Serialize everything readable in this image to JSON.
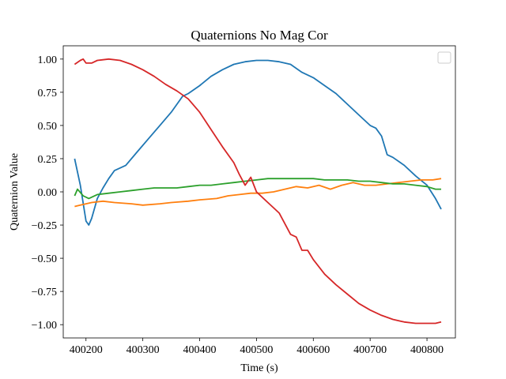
{
  "chart_data": {
    "type": "line",
    "title": "Quaternions No Mag Cor",
    "xlabel": "Time (s)",
    "ylabel": "Quaternion Value",
    "xlim": [
      400160,
      400850
    ],
    "ylim": [
      -1.1,
      1.1
    ],
    "x_ticks": [
      400200,
      400300,
      400400,
      400500,
      400600,
      400700,
      400800
    ],
    "y_ticks": [
      -1.0,
      -0.75,
      -0.5,
      -0.25,
      0.0,
      0.25,
      0.5,
      0.75,
      1.0
    ],
    "x_tick_labels": [
      "400200",
      "400300",
      "400400",
      "400500",
      "400600",
      "400700",
      "400800"
    ],
    "y_tick_labels": [
      "−1.00",
      "−0.75",
      "−0.50",
      "−0.25",
      "0.00",
      "0.25",
      "0.50",
      "0.75",
      "1.00"
    ],
    "grid": false,
    "legend": {
      "placement": "top-right",
      "entries": []
    },
    "series": [
      {
        "color": "#1f77b4",
        "x": [
          400180,
          400190,
          400200,
          400205,
          400210,
          400220,
          400230,
          400240,
          400250,
          400270,
          400290,
          400310,
          400330,
          400350,
          400360,
          400370,
          400380,
          400400,
          400420,
          400440,
          400460,
          400480,
          400500,
          400520,
          400540,
          400560,
          400580,
          400600,
          400620,
          400640,
          400660,
          400680,
          400700,
          400710,
          400720,
          400730,
          400740,
          400760,
          400780,
          400800,
          400815,
          400825
        ],
        "y": [
          0.25,
          0.05,
          -0.22,
          -0.25,
          -0.2,
          -0.05,
          0.03,
          0.1,
          0.16,
          0.2,
          0.3,
          0.4,
          0.5,
          0.6,
          0.66,
          0.72,
          0.74,
          0.8,
          0.87,
          0.92,
          0.96,
          0.98,
          0.99,
          0.99,
          0.98,
          0.96,
          0.9,
          0.86,
          0.8,
          0.74,
          0.66,
          0.58,
          0.5,
          0.48,
          0.42,
          0.28,
          0.26,
          0.2,
          0.12,
          0.05,
          -0.05,
          -0.13
        ]
      },
      {
        "color": "#ff7f0e",
        "x": [
          400180,
          400190,
          400200,
          400210,
          400230,
          400250,
          400280,
          400300,
          400330,
          400350,
          400380,
          400400,
          400430,
          400450,
          400470,
          400490,
          400510,
          400530,
          400550,
          400570,
          400590,
          400610,
          400630,
          400650,
          400670,
          400690,
          400710,
          400730,
          400750,
          400770,
          400790,
          400810,
          400825
        ],
        "y": [
          -0.11,
          -0.1,
          -0.09,
          -0.08,
          -0.07,
          -0.08,
          -0.09,
          -0.1,
          -0.09,
          -0.08,
          -0.07,
          -0.06,
          -0.05,
          -0.03,
          -0.02,
          -0.01,
          -0.01,
          0.0,
          0.02,
          0.04,
          0.03,
          0.05,
          0.02,
          0.05,
          0.07,
          0.05,
          0.05,
          0.06,
          0.07,
          0.08,
          0.09,
          0.09,
          0.1
        ]
      },
      {
        "color": "#2ca02c",
        "x": [
          400180,
          400185,
          400195,
          400205,
          400220,
          400240,
          400260,
          400280,
          400300,
          400320,
          400340,
          400360,
          400380,
          400400,
          400420,
          400440,
          400460,
          400480,
          400500,
          400520,
          400540,
          400560,
          400580,
          400600,
          400620,
          400640,
          400660,
          400680,
          400700,
          400720,
          400740,
          400760,
          400780,
          400800,
          400815,
          400825
        ],
        "y": [
          -0.03,
          0.02,
          -0.03,
          -0.05,
          -0.02,
          -0.01,
          0.0,
          0.01,
          0.02,
          0.03,
          0.03,
          0.03,
          0.04,
          0.05,
          0.05,
          0.06,
          0.07,
          0.08,
          0.09,
          0.1,
          0.1,
          0.1,
          0.1,
          0.1,
          0.09,
          0.09,
          0.09,
          0.08,
          0.08,
          0.07,
          0.06,
          0.06,
          0.05,
          0.04,
          0.02,
          0.02
        ]
      },
      {
        "color": "#d62728",
        "x": [
          400180,
          400190,
          400195,
          400200,
          400210,
          400220,
          400240,
          400260,
          400280,
          400300,
          400320,
          400340,
          400360,
          400380,
          400400,
          400420,
          400440,
          400460,
          400470,
          400480,
          400490,
          400500,
          400520,
          400540,
          400560,
          400570,
          400580,
          400590,
          400600,
          400620,
          400640,
          400660,
          400680,
          400700,
          400720,
          400740,
          400760,
          400780,
          400800,
          400815,
          400825
        ],
        "y": [
          0.96,
          0.99,
          1.0,
          0.97,
          0.97,
          0.99,
          1.0,
          0.99,
          0.96,
          0.92,
          0.87,
          0.81,
          0.76,
          0.7,
          0.6,
          0.47,
          0.34,
          0.22,
          0.13,
          0.05,
          0.11,
          0.0,
          -0.08,
          -0.16,
          -0.32,
          -0.34,
          -0.44,
          -0.44,
          -0.51,
          -0.62,
          -0.7,
          -0.77,
          -0.84,
          -0.89,
          -0.93,
          -0.96,
          -0.98,
          -0.99,
          -0.99,
          -0.99,
          -0.98
        ]
      }
    ]
  }
}
